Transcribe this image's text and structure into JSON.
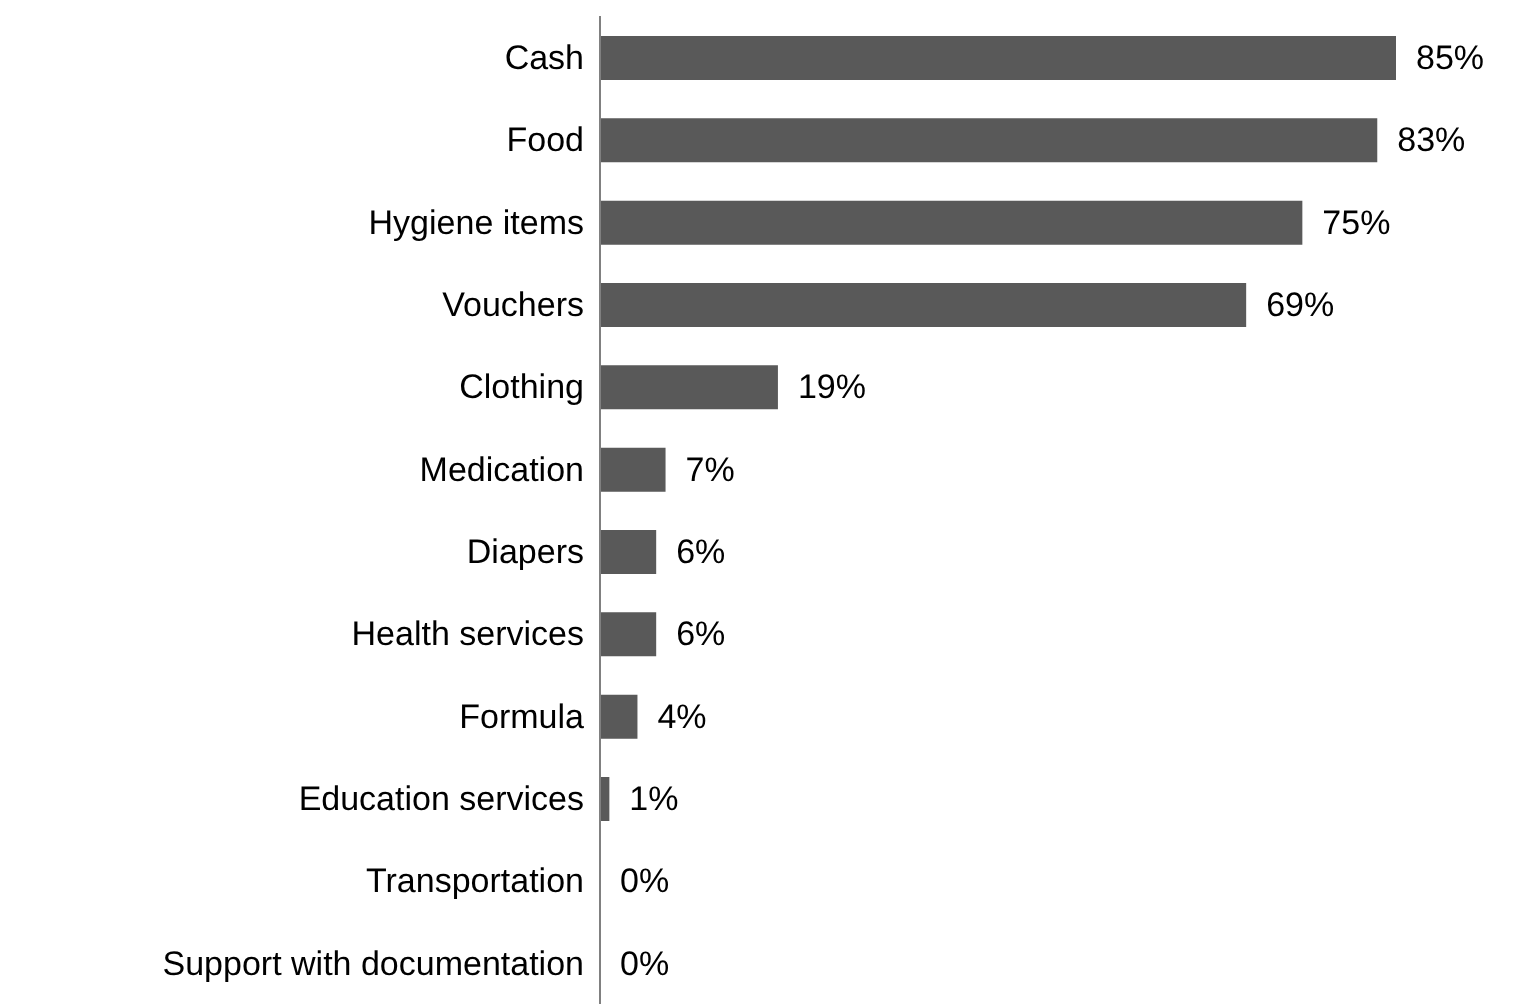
{
  "chart_data": {
    "type": "bar",
    "orientation": "horizontal",
    "categories": [
      "Cash",
      "Food",
      "Hygiene items",
      "Vouchers",
      "Clothing",
      "Medication",
      "Diapers",
      "Health services",
      "Formula",
      "Education services",
      "Transportation",
      "Support with documentation"
    ],
    "values": [
      85,
      83,
      75,
      69,
      19,
      7,
      6,
      6,
      4,
      1,
      0,
      0
    ],
    "value_labels": [
      "85%",
      "83%",
      "75%",
      "69%",
      "19%",
      "7%",
      "6%",
      "6%",
      "4%",
      "1%",
      "0%",
      "0%"
    ],
    "color": "#595959"
  }
}
